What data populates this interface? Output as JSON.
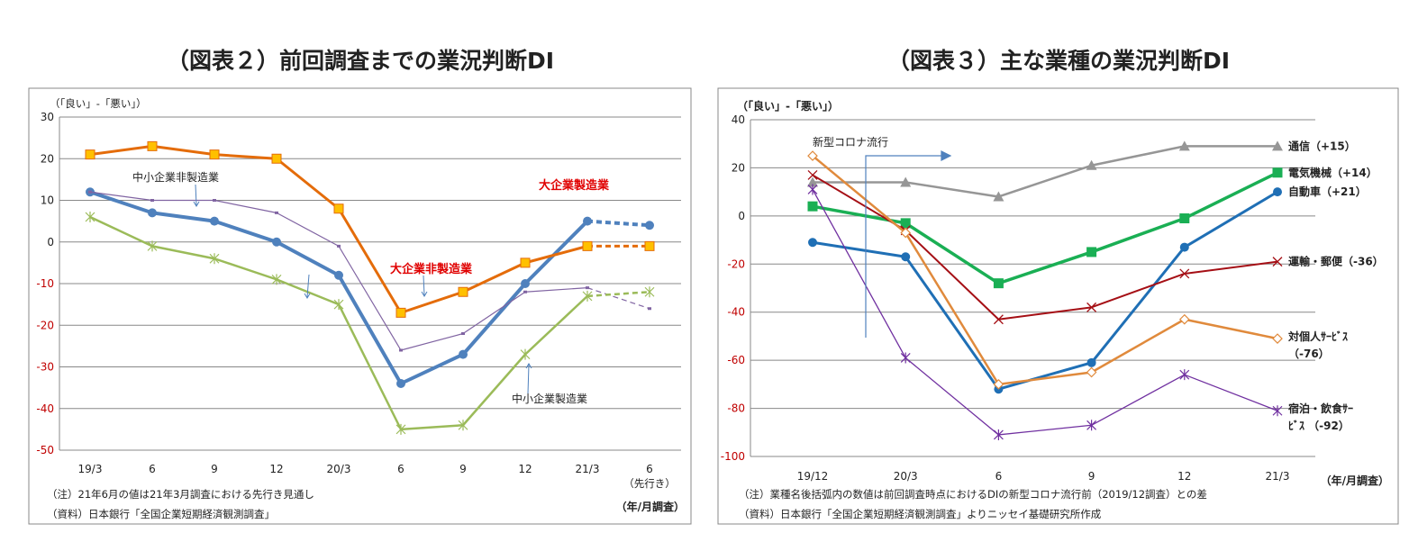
{
  "chart_data": [
    {
      "type": "line",
      "title": "（図表２）前回調査までの業況判断DI",
      "ylabel": "（「良い」-「悪い」）",
      "xlabel": "（年/月調査）",
      "ylim": [
        -50,
        30
      ],
      "yticks": [
        30,
        20,
        10,
        0,
        -10,
        -20,
        -30,
        -40,
        -50
      ],
      "categories": [
        "19/3",
        "6",
        "9",
        "12",
        "20/3",
        "6",
        "9",
        "12",
        "21/3",
        "6"
      ],
      "category_note": "（先行き）",
      "grid": true,
      "forecast_from_index": 8,
      "series": [
        {
          "name": "大企業製造業",
          "color": "#4f81bd",
          "marker": "circle",
          "values": [
            12,
            7,
            5,
            0,
            -8,
            -34,
            -27,
            -10,
            5,
            4
          ]
        },
        {
          "name": "大企業非製造業",
          "color": "#e46c0a",
          "marker": "square",
          "values": [
            21,
            23,
            21,
            20,
            8,
            -17,
            -12,
            -5,
            -1,
            -1
          ]
        },
        {
          "name": "中小企業非製造業",
          "color": "#8064a2",
          "marker": "dash",
          "values": [
            12,
            10,
            10,
            7,
            -1,
            -26,
            -22,
            -12,
            -11,
            -16
          ]
        },
        {
          "name": "中小企業製造業",
          "color": "#9bbb59",
          "marker": "star",
          "values": [
            6,
            -1,
            -4,
            -9,
            -15,
            -45,
            -44,
            -27,
            -13,
            -12
          ]
        }
      ],
      "notes": [
        "（注）21年6月の値は21年3月調査における先行き見通し",
        "（資料）日本銀行「全国企業短期経済観測調査」"
      ]
    },
    {
      "type": "line",
      "title": "（図表３）主な業種の業況判断DI",
      "ylabel": "（「良い」-「悪い」）",
      "xlabel": "（年/月調査）",
      "ylim": [
        -100,
        40
      ],
      "yticks": [
        40,
        20,
        0,
        -20,
        -40,
        -60,
        -80,
        -100
      ],
      "categories": [
        "19/12",
        "20/3",
        "6",
        "9",
        "12",
        "21/3"
      ],
      "grid": true,
      "annotation": "新型コロナ流行",
      "series": [
        {
          "name": "通信",
          "label": "通信（+15）",
          "color": "#969696",
          "marker": "triangle",
          "values": [
            14,
            14,
            8,
            21,
            29,
            29
          ]
        },
        {
          "name": "電気機械",
          "label": "電気機械（+14）",
          "color": "#1aaf54",
          "marker": "square",
          "values": [
            4,
            -3,
            -28,
            -15,
            -1,
            18
          ]
        },
        {
          "name": "自動車",
          "label": "自動車（+21）",
          "color": "#1f6fb5",
          "marker": "circle",
          "values": [
            -11,
            -17,
            -72,
            -61,
            -13,
            10
          ]
        },
        {
          "name": "運輸・郵便",
          "label": "運輸・郵便（-36）",
          "color": "#a50f15",
          "marker": "x",
          "values": [
            17,
            -6,
            -43,
            -38,
            -24,
            -19
          ]
        },
        {
          "name": "対個人サービス",
          "label": [
            "対個人ｻｰﾋﾞｽ",
            "（-76）"
          ],
          "color": "#e08a3c",
          "marker": "diamond",
          "values": [
            25,
            -7,
            -70,
            -65,
            -43,
            -51
          ]
        },
        {
          "name": "宿泊・飲食サービス",
          "label": [
            "宿泊・飲食ｻｰ",
            "ﾋﾞｽ （-92）"
          ],
          "color": "#7030a0",
          "marker": "star",
          "values": [
            11,
            -59,
            -91,
            -87,
            -66,
            -81
          ]
        }
      ],
      "notes": [
        "（注）業種名後括弧内の数値は前回調査時点におけるDIの新型コロナ流行前（2019/12調査）との差",
        "（資料）日本銀行「全国企業短期経済観測調査」よりニッセイ基礎研究所作成"
      ]
    }
  ]
}
